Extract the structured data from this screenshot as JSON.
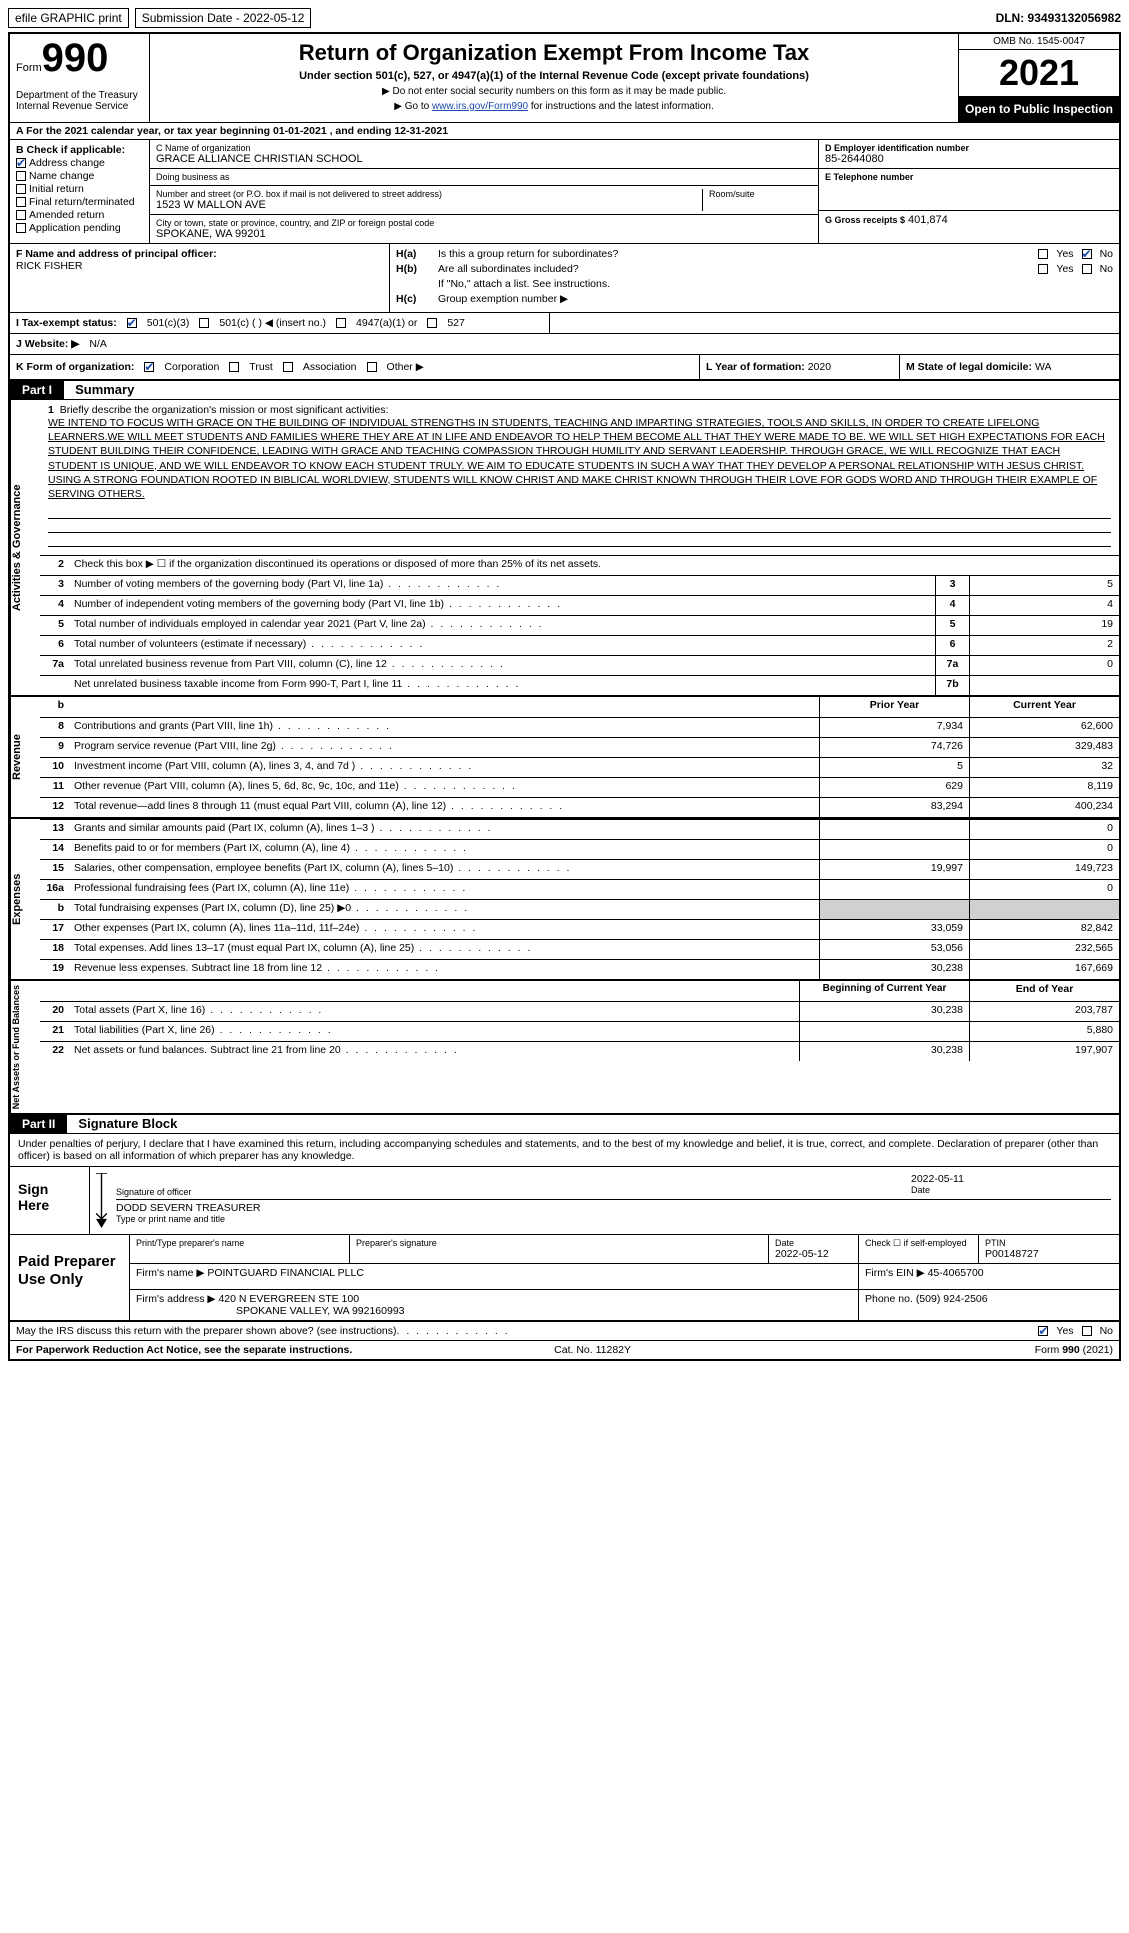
{
  "meta": {
    "efile_label": "efile GRAPHIC print",
    "sub_date_label": "Submission Date - 2022-05-12",
    "dln_label": "DLN: 93493132056982",
    "omb": "OMB No. 1545-0047",
    "form_word": "Form",
    "form_num": "990",
    "dept": "Department of the Treasury\nInternal Revenue Service",
    "tax_year": "2021",
    "open_pub": "Open to Public Inspection",
    "main_title": "Return of Organization Exempt From Income Tax",
    "subtitle": "Under section 501(c), 527, or 4947(a)(1) of the Internal Revenue Code (except private foundations)",
    "instr1": "▶ Do not enter social security numbers on this form as it may be made public.",
    "instr2_pre": "▶ Go to ",
    "instr2_link": "www.irs.gov/Form990",
    "instr2_post": " for instructions and the latest information."
  },
  "section_a": {
    "label": "A For the 2021 calendar year, or tax year beginning 01-01-2021   , and ending 12-31-2021"
  },
  "section_b": {
    "heading": "B Check if applicable:",
    "items": [
      {
        "label": "Address change",
        "checked": true
      },
      {
        "label": "Name change",
        "checked": false
      },
      {
        "label": "Initial return",
        "checked": false
      },
      {
        "label": "Final return/terminated",
        "checked": false
      },
      {
        "label": "Amended return",
        "checked": false
      },
      {
        "label": "Application pending",
        "checked": false
      }
    ]
  },
  "section_c": {
    "name_label": "C Name of organization",
    "name": "GRACE ALLIANCE CHRISTIAN SCHOOL",
    "dba_label": "Doing business as",
    "dba": "",
    "street_label": "Number and street (or P.O. box if mail is not delivered to street address)",
    "street": "1523 W MALLON AVE",
    "room_label": "Room/suite",
    "room": "",
    "city_label": "City or town, state or province, country, and ZIP or foreign postal code",
    "city": "SPOKANE, WA  99201"
  },
  "section_d": {
    "label": "D Employer identification number",
    "value": "85-2644080"
  },
  "section_e": {
    "label": "E Telephone number",
    "value": ""
  },
  "section_g": {
    "label": "G Gross receipts $",
    "value": "401,874"
  },
  "section_f": {
    "label": "F  Name and address of principal officer:",
    "name": "RICK FISHER"
  },
  "section_h": {
    "a_label": "Is this a group return for subordinates?",
    "a_yes": false,
    "a_no": true,
    "b_label": "Are all subordinates included?",
    "b_yes": false,
    "b_no": false,
    "b_note": "If \"No,\" attach a list. See instructions.",
    "c_label": "Group exemption number ▶",
    "c_value": ""
  },
  "section_i": {
    "label": "I    Tax-exempt status:",
    "opts": {
      "c3": {
        "label": "501(c)(3)",
        "checked": true
      },
      "c_other": {
        "label": "501(c) (  ) ◀ (insert no.)",
        "checked": false
      },
      "a1": {
        "label": "4947(a)(1) or",
        "checked": false
      },
      "s527": {
        "label": "527",
        "checked": false
      }
    }
  },
  "section_j": {
    "label": "J   Website: ▶",
    "value": "N/A"
  },
  "section_k": {
    "label": "K Form of organization:",
    "opts": {
      "corp": {
        "label": "Corporation",
        "checked": true
      },
      "trust": {
        "label": "Trust",
        "checked": false
      },
      "assoc": {
        "label": "Association",
        "checked": false
      },
      "other": {
        "label": "Other ▶",
        "checked": false
      }
    }
  },
  "section_l": {
    "label": "L Year of formation:",
    "value": "2020"
  },
  "section_m": {
    "label": "M State of legal domicile:",
    "value": "WA"
  },
  "part1": {
    "hdr": "Part I",
    "title": "Summary",
    "mission_label": "Briefly describe the organization's mission or most significant activities:",
    "mission": "WE INTEND TO FOCUS WITH GRACE ON THE BUILDING OF INDIVIDUAL STRENGTHS IN STUDENTS, TEACHING AND IMPARTING STRATEGIES, TOOLS AND SKILLS, IN ORDER TO CREATE LIFELONG LEARNERS.WE WILL MEET STUDENTS AND FAMILIES WHERE THEY ARE AT IN LIFE AND ENDEAVOR TO HELP THEM BECOME ALL THAT THEY WERE MADE TO BE. WE WILL SET HIGH EXPECTATIONS FOR EACH STUDENT BUILDING THEIR CONFIDENCE, LEADING WITH GRACE AND TEACHING COMPASSION THROUGH HUMILITY AND SERVANT LEADERSHIP. THROUGH GRACE, WE WILL RECOGNIZE THAT EACH STUDENT IS UNIQUE, AND WE WILL ENDEAVOR TO KNOW EACH STUDENT TRULY. WE AIM TO EDUCATE STUDENTS IN SUCH A WAY THAT THEY DEVELOP A PERSONAL RELATIONSHIP WITH JESUS CHRIST. USING A STRONG FOUNDATION ROOTED IN BIBLICAL WORLDVIEW, STUDENTS WILL KNOW CHRIST AND MAKE CHRIST KNOWN THROUGH THEIR LOVE FOR GODS WORD AND THROUGH THEIR EXAMPLE OF SERVING OTHERS.",
    "line2": "Check this box ▶ ☐ if the organization discontinued its operations or disposed of more than 25% of its net assets.",
    "gov_tab": "Activities & Governance",
    "rev_tab": "Revenue",
    "exp_tab": "Expenses",
    "net_tab": "Net Assets or Fund Balances",
    "prior_hdr": "Prior Year",
    "curr_hdr": "Current Year",
    "boy_hdr": "Beginning of Current Year",
    "eoy_hdr": "End of Year",
    "gov_lines": [
      {
        "n": "3",
        "t": "Number of voting members of the governing body (Part VI, line 1a)",
        "box": "3",
        "v": "5"
      },
      {
        "n": "4",
        "t": "Number of independent voting members of the governing body (Part VI, line 1b)",
        "box": "4",
        "v": "4"
      },
      {
        "n": "5",
        "t": "Total number of individuals employed in calendar year 2021 (Part V, line 2a)",
        "box": "5",
        "v": "19"
      },
      {
        "n": "6",
        "t": "Total number of volunteers (estimate if necessary)",
        "box": "6",
        "v": "2"
      },
      {
        "n": "7a",
        "t": "Total unrelated business revenue from Part VIII, column (C), line 12",
        "box": "7a",
        "v": "0"
      },
      {
        "n": "",
        "t": "Net unrelated business taxable income from Form 990-T, Part I, line 11",
        "box": "7b",
        "v": ""
      }
    ],
    "rev_lines": [
      {
        "n": "8",
        "t": "Contributions and grants (Part VIII, line 1h)",
        "py": "7,934",
        "cy": "62,600"
      },
      {
        "n": "9",
        "t": "Program service revenue (Part VIII, line 2g)",
        "py": "74,726",
        "cy": "329,483"
      },
      {
        "n": "10",
        "t": "Investment income (Part VIII, column (A), lines 3, 4, and 7d )",
        "py": "5",
        "cy": "32"
      },
      {
        "n": "11",
        "t": "Other revenue (Part VIII, column (A), lines 5, 6d, 8c, 9c, 10c, and 11e)",
        "py": "629",
        "cy": "8,119"
      },
      {
        "n": "12",
        "t": "Total revenue—add lines 8 through 11 (must equal Part VIII, column (A), line 12)",
        "py": "83,294",
        "cy": "400,234"
      }
    ],
    "exp_lines": [
      {
        "n": "13",
        "t": "Grants and similar amounts paid (Part IX, column (A), lines 1–3 )",
        "py": "",
        "cy": "0"
      },
      {
        "n": "14",
        "t": "Benefits paid to or for members (Part IX, column (A), line 4)",
        "py": "",
        "cy": "0"
      },
      {
        "n": "15",
        "t": "Salaries, other compensation, employee benefits (Part IX, column (A), lines 5–10)",
        "py": "19,997",
        "cy": "149,723"
      },
      {
        "n": "16a",
        "t": "Professional fundraising fees (Part IX, column (A), line 11e)",
        "py": "",
        "cy": "0"
      },
      {
        "n": "b",
        "t": "Total fundraising expenses (Part IX, column (D), line 25) ▶0",
        "py": "SHADE",
        "cy": "SHADE"
      },
      {
        "n": "17",
        "t": "Other expenses (Part IX, column (A), lines 11a–11d, 11f–24e)",
        "py": "33,059",
        "cy": "82,842"
      },
      {
        "n": "18",
        "t": "Total expenses. Add lines 13–17 (must equal Part IX, column (A), line 25)",
        "py": "53,056",
        "cy": "232,565"
      },
      {
        "n": "19",
        "t": "Revenue less expenses. Subtract line 18 from line 12",
        "py": "30,238",
        "cy": "167,669"
      }
    ],
    "net_lines": [
      {
        "n": "20",
        "t": "Total assets (Part X, line 16)",
        "py": "30,238",
        "cy": "203,787"
      },
      {
        "n": "21",
        "t": "Total liabilities (Part X, line 26)",
        "py": "",
        "cy": "5,880"
      },
      {
        "n": "22",
        "t": "Net assets or fund balances. Subtract line 21 from line 20",
        "py": "30,238",
        "cy": "197,907"
      }
    ]
  },
  "part2": {
    "hdr": "Part II",
    "title": "Signature Block",
    "intro": "Under penalties of perjury, I declare that I have examined this return, including accompanying schedules and statements, and to the best of my knowledge and belief, it is true, correct, and complete. Declaration of preparer (other than officer) is based on all information of which preparer has any knowledge.",
    "sign_here": "Sign Here",
    "sig_lbl": "Signature of officer",
    "date_lbl": "Date",
    "date_val": "2022-05-11",
    "name_title": "DODD SEVERN  TREASURER",
    "name_title_lbl": "Type or print name and title",
    "paid_prep": "Paid Preparer Use Only",
    "p_name_lbl": "Print/Type preparer's name",
    "p_name": "",
    "p_sig_lbl": "Preparer's signature",
    "p_date_lbl": "Date",
    "p_date": "2022-05-12",
    "p_self_lbl": "Check ☐ if self-employed",
    "ptin_lbl": "PTIN",
    "ptin": "P00148727",
    "firm_name_lbl": "Firm's name    ▶",
    "firm_name": "POINTGUARD FINANCIAL PLLC",
    "firm_ein_lbl": "Firm's EIN ▶",
    "firm_ein": "45-4065700",
    "firm_addr_lbl": "Firm's address ▶",
    "firm_addr1": "420 N EVERGREEN STE 100",
    "firm_addr2": "SPOKANE VALLEY, WA  992160993",
    "phone_lbl": "Phone no.",
    "phone": "(509) 924-2506",
    "discuss": "May the IRS discuss this return with the preparer shown above? (see instructions)",
    "discuss_yes": true,
    "discuss_no": false,
    "pra": "For Paperwork Reduction Act Notice, see the separate instructions.",
    "cat": "Cat. No. 11282Y",
    "form_foot": "Form 990 (2021)"
  }
}
